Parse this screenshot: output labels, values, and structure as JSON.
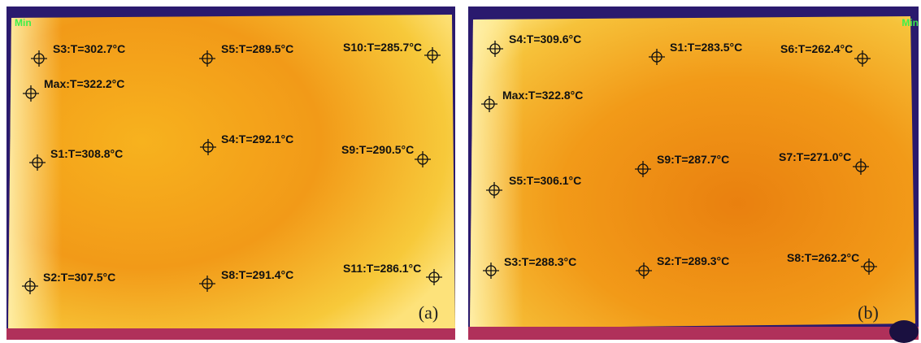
{
  "panels": [
    {
      "caption": "(a)",
      "min_label": "Min",
      "spots": [
        "S3:T=302.7°C",
        "S5:T=289.5°C",
        "S10:T=285.7°C",
        "Max:T=322.2°C",
        "S1:T=308.8°C",
        "S4:T=292.1°C",
        "S9:T=290.5°C",
        "S2:T=307.5°C",
        "S8:T=291.4°C",
        "S11:T=286.1°C"
      ]
    },
    {
      "caption": "(b)",
      "min_label": "Min",
      "spots": [
        "S4:T=309.6°C",
        "S1:T=283.5°C",
        "S6:T=262.4°C",
        "Max:T=322.8°C",
        "S9:T=287.7°C",
        "S7:T=271.0°C",
        "S5:T=306.1°C",
        "S3:T=288.3°C",
        "S2:T=289.3°C",
        "S8:T=262.2°C"
      ]
    }
  ]
}
